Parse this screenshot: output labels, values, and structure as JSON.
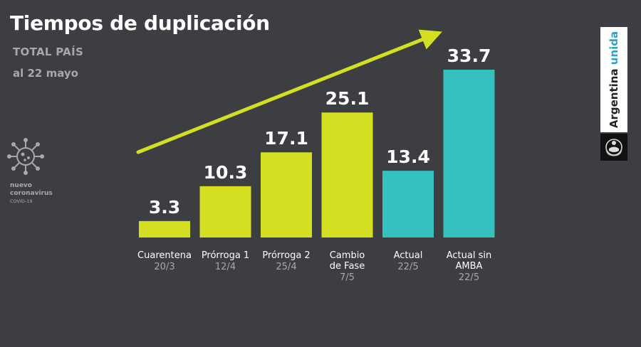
{
  "header": {
    "title": "Tiempos de duplicación",
    "subtitle": "TOTAL PAÍS",
    "date": "al 22 mayo"
  },
  "badge": {
    "line1": "nuevo",
    "line2": "coronavirus",
    "line3": "COVID-19"
  },
  "brand": {
    "argentina": "Argentina",
    "unida": "unida"
  },
  "colors": {
    "background": "#3d3e42",
    "bar_lime": "#d4df22",
    "bar_teal": "#35c1c0",
    "muted_text": "#a7a8ab",
    "arrow": "#d4df22"
  },
  "chart_data": {
    "type": "bar",
    "title": "Tiempos de duplicación",
    "categories": [
      {
        "label": "Cuarentena",
        "date": "20/3",
        "value": 3.3,
        "value_label": "3.3",
        "color": "#d4df22"
      },
      {
        "label": "Prórroga 1",
        "date": "12/4",
        "value": 10.3,
        "value_label": "10.3",
        "color": "#d4df22"
      },
      {
        "label": "Prórroga 2",
        "date": "25/4",
        "value": 17.1,
        "value_label": "17.1",
        "color": "#d4df22"
      },
      {
        "label": "Cambio de Fase",
        "label_lines": [
          "Cambio",
          "de Fase"
        ],
        "date": "7/5",
        "value": 25.1,
        "value_label": "25.1",
        "color": "#d4df22"
      },
      {
        "label": "Actual",
        "date": "22/5",
        "value": 13.4,
        "value_label": "13.4",
        "color": "#35c1c0"
      },
      {
        "label": "Actual sin AMBA",
        "label_lines": [
          "Actual sin",
          "AMBA"
        ],
        "date": "22/5",
        "value": 33.7,
        "value_label": "33.7",
        "color": "#35c1c0"
      }
    ],
    "ylim": [
      0,
      33.7
    ],
    "xlabel": "",
    "ylabel": "",
    "grid": false,
    "annotation": "trend arrow"
  }
}
